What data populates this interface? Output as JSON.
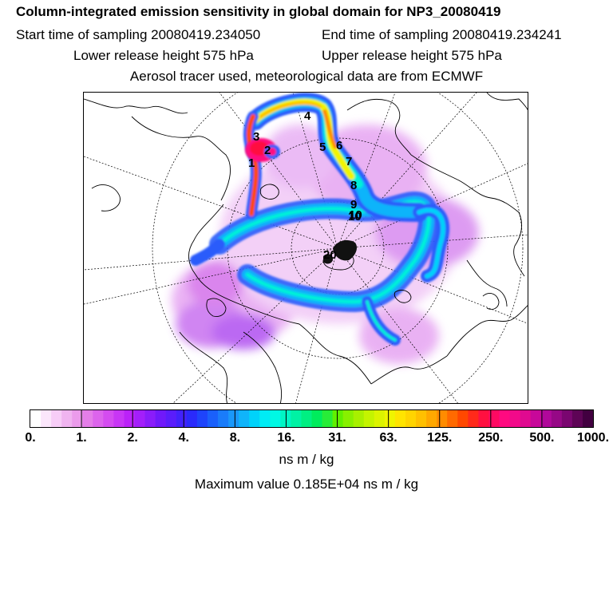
{
  "header": {
    "title": "Column-integrated emission sensitivity in global domain for NP3_20080419",
    "start_time": "Start time of sampling 20080419.234050",
    "end_time": "End time of sampling 20080419.234241",
    "lower_height": "Lower release height  575 hPa",
    "upper_height": "Upper release height  575 hPa",
    "tracer_info": "Aerosol tracer used, meteorological data are from ECMWF"
  },
  "map": {
    "projection": "polar stereographic (north)",
    "trajectory_labels": [
      "1",
      "2",
      "3",
      "4",
      "5",
      "6",
      "7",
      "8",
      "9",
      "10",
      "20"
    ]
  },
  "colorbar": {
    "tick_labels": [
      "0.",
      "1.",
      "2.",
      "4.",
      "8.",
      "16.",
      "31.",
      "63.",
      "125.",
      "250.",
      "500.",
      "1000."
    ],
    "colors": [
      "#ffffff",
      "#fbe6fb",
      "#f7cdf7",
      "#f0b4f0",
      "#eb9beb",
      "#e47ee8",
      "#dc64ec",
      "#d44cf0",
      "#c836f5",
      "#bb22f8",
      "#a31ffa",
      "#8a1cfa",
      "#7019fa",
      "#5a1dfb",
      "#4222fb",
      "#2a2afb",
      "#1e44fb",
      "#1a60fb",
      "#1a7cfa",
      "#1a98fa",
      "#10b4fa",
      "#00d2fa",
      "#00ecf5",
      "#00f8e4",
      "#00f5c4",
      "#00f2a4",
      "#00ef82",
      "#00ec5c",
      "#28ec38",
      "#60f000",
      "#88f000",
      "#a8f000",
      "#c4f400",
      "#dcf400",
      "#f0f400",
      "#ffe400",
      "#ffd400",
      "#ffc000",
      "#ffa800",
      "#ff8c00",
      "#ff6a00",
      "#ff4800",
      "#ff2a1a",
      "#ff1040",
      "#ff0a62",
      "#ff0a80",
      "#f20a8a",
      "#e00a90",
      "#c8089a",
      "#b0089a",
      "#960886",
      "#7a0670",
      "#5e0456",
      "#420040"
    ],
    "units": "ns m / kg"
  },
  "footer": {
    "max_value": "Maximum value  0.185E+04 ns m / kg"
  }
}
